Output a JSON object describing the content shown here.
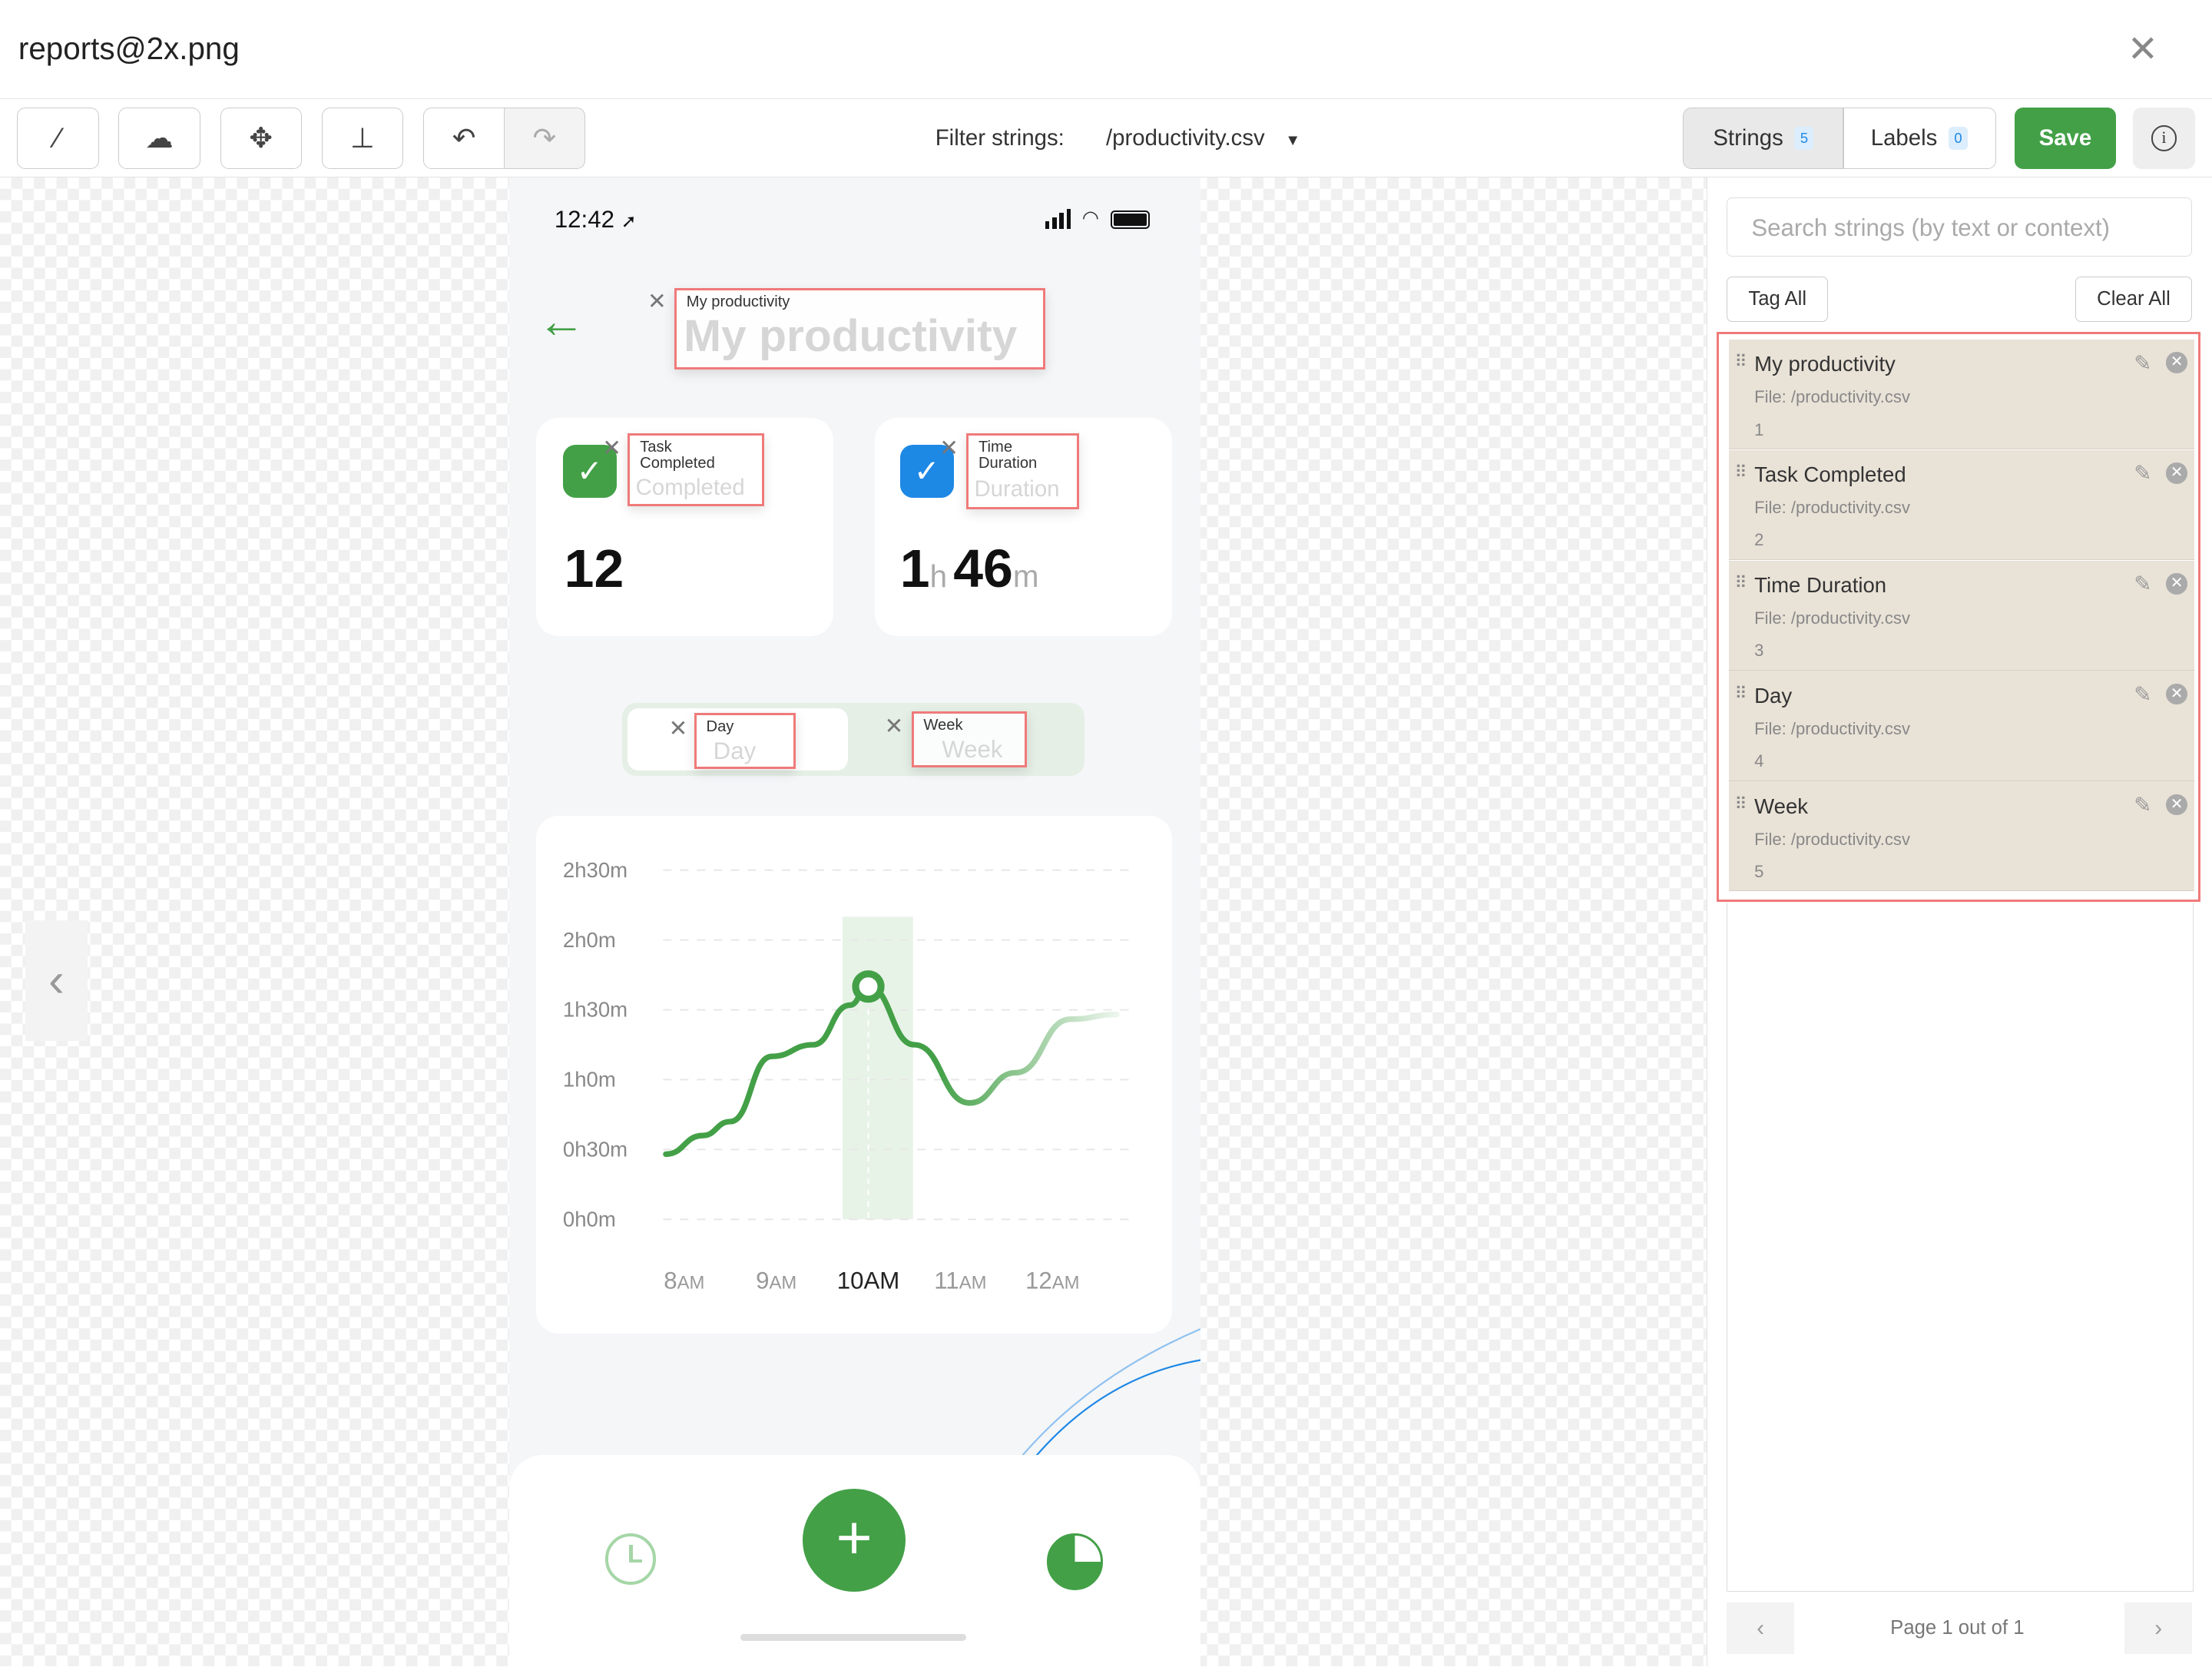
{
  "window": {
    "title": "reports@2x.png",
    "close_icon": "close-icon"
  },
  "toolbar": {
    "tools": [
      "magic-wand-icon",
      "cloud-upload-icon",
      "move-icon",
      "brush-icon",
      "undo-icon",
      "redo-icon"
    ],
    "filter_label": "Filter strings:",
    "filter_value": "/productivity.csv",
    "strings_label": "Strings",
    "strings_count": "5",
    "labels_label": "Labels",
    "labels_count": "0",
    "save_label": "Save"
  },
  "phone": {
    "time": "12:42",
    "title": "My productivity",
    "cards": [
      {
        "label": "Task Completed",
        "label_line1": "Task",
        "label_line2": "Completed",
        "ghost": "Completed",
        "value": "12",
        "color": "#43a047"
      },
      {
        "label": "Time Duration",
        "label_line1": "Time",
        "label_line2": "Duration",
        "ghost": "Duration",
        "hours": "1",
        "h": "h",
        "minutes": "46",
        "m": "m",
        "color": "#1e88e5"
      }
    ],
    "tabs": [
      {
        "label": "Day",
        "ghost": "Day"
      },
      {
        "label": "Week",
        "ghost": "Week"
      }
    ],
    "chart": {
      "type": "line",
      "y_ticks": [
        "2h30m",
        "2h0m",
        "1h30m",
        "1h0m",
        "0h30m",
        "0h0m"
      ],
      "x_ticks": [
        {
          "n": "8",
          "u": "AM"
        },
        {
          "n": "9",
          "u": "AM"
        },
        {
          "n": "10",
          "u": "AM"
        },
        {
          "n": "11",
          "u": "AM"
        },
        {
          "n": "12",
          "u": "AM"
        }
      ],
      "ylim_minutes": [
        0,
        150
      ],
      "highlight": "10AM",
      "color": "#43a047"
    }
  },
  "chart_data": {
    "type": "line",
    "x_ticks": [
      "8AM",
      "9AM",
      "10AM",
      "11AM",
      "12AM"
    ],
    "y_ticks": [
      "0h0m",
      "0h30m",
      "1h0m",
      "1h30m",
      "2h0m",
      "2h30m"
    ],
    "x_hours": [
      7.8,
      8.2,
      8.5,
      8.95,
      9.4,
      9.8,
      10.0,
      10.5,
      11.1,
      11.6,
      12.2,
      12.7
    ],
    "y_minutes": [
      28,
      36,
      42,
      70,
      75,
      92,
      100,
      75,
      50,
      63,
      86,
      88
    ],
    "highlight_x": "10AM"
  },
  "panel": {
    "search_placeholder": "Search strings (by text or context)",
    "tag_all": "Tag All",
    "clear_all": "Clear All",
    "items": [
      {
        "name": "My productivity",
        "file": "File: /productivity.csv",
        "num": "1"
      },
      {
        "name": "Task Completed",
        "file": "File: /productivity.csv",
        "num": "2"
      },
      {
        "name": "Time Duration",
        "file": "File: /productivity.csv",
        "num": "3"
      },
      {
        "name": "Day",
        "file": "File: /productivity.csv",
        "num": "4"
      },
      {
        "name": "Week",
        "file": "File: /productivity.csv",
        "num": "5"
      }
    ],
    "pager": "Page 1 out of 1"
  }
}
